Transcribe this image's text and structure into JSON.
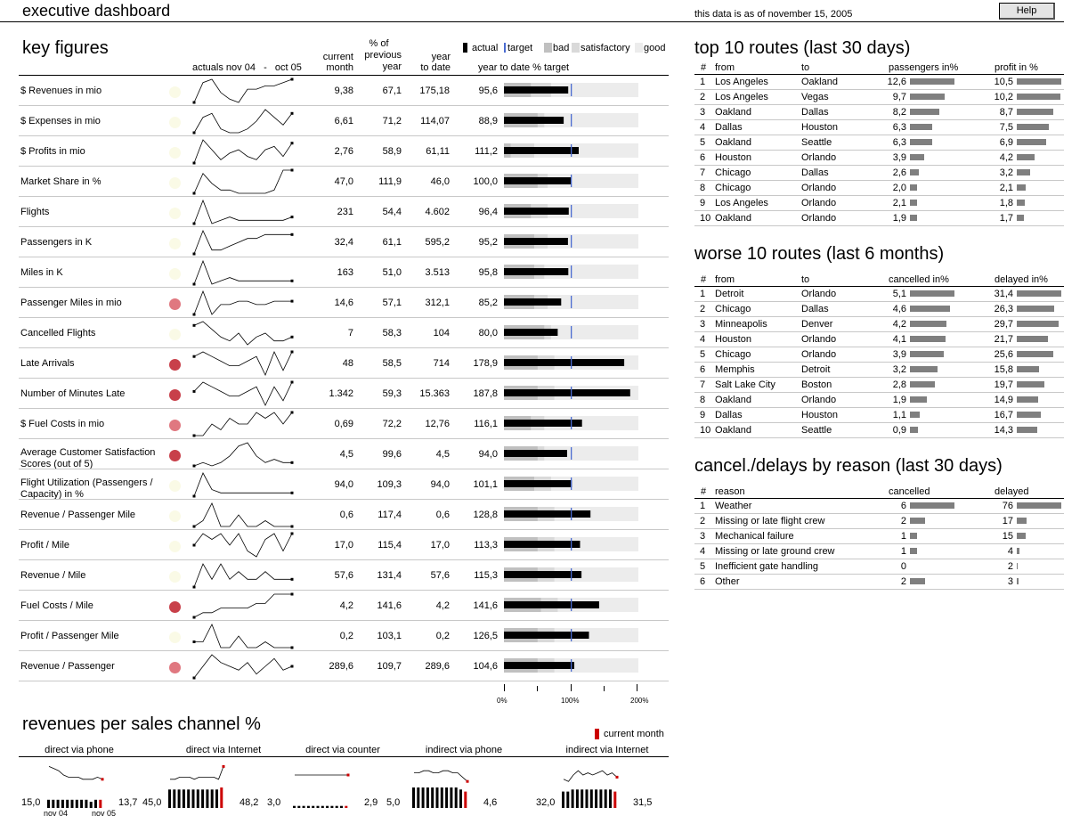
{
  "header": {
    "title": "executive dashboard",
    "as_of": "this data is as of november 15, 2005",
    "help_label": "Help"
  },
  "key_figures": {
    "title": "key figures",
    "col_actuals": "actuals nov 04   -   oct 05",
    "col_current": [
      "current",
      "month"
    ],
    "col_prev": [
      "% of",
      "previous",
      "year"
    ],
    "col_ytd": [
      "year",
      "to date"
    ],
    "col_ytd_target": "year to date % target",
    "legend": {
      "actual": "actual",
      "target": "target",
      "bad": "bad",
      "satisfactory": "satisfactory",
      "good": "good"
    },
    "axis_labels": [
      "0%",
      "100%",
      "200%"
    ],
    "rows": [
      {
        "label": "$ Revenues in mio",
        "current": "9,38",
        "prev": "67,1",
        "ytd": "175,18",
        "target": "95,6",
        "pct": 95.6,
        "bad": 40,
        "sat": 70,
        "status": "none",
        "spark": [
          2,
          8,
          9,
          5,
          3,
          2,
          6,
          6,
          7,
          7,
          8,
          9
        ]
      },
      {
        "label": "$ Expenses in mio",
        "current": "6,61",
        "prev": "71,2",
        "ytd": "114,07",
        "target": "88,9",
        "pct": 88.9,
        "bad": 50,
        "sat": 60,
        "status": "none",
        "spark": [
          2,
          6,
          7,
          3,
          2,
          2,
          3,
          5,
          8,
          6,
          4,
          7
        ]
      },
      {
        "label": "$ Profits in mio",
        "current": "2,76",
        "prev": "58,9",
        "ytd": "61,11",
        "target": "111,2",
        "pct": 111.2,
        "bad": 10,
        "sat": 45,
        "status": "none",
        "spark": [
          2,
          9,
          6,
          3,
          5,
          6,
          4,
          3,
          6,
          7,
          4,
          8
        ]
      },
      {
        "label": "Market Share in %",
        "current": "47,0",
        "prev": "111,9",
        "ytd": "46,0",
        "target": "100,0",
        "pct": 100,
        "bad": 50,
        "sat": 65,
        "status": "none",
        "spark": [
          2,
          8,
          5,
          3,
          3,
          2,
          2,
          2,
          2,
          3,
          9,
          9
        ]
      },
      {
        "label": "Flights",
        "current": "231",
        "prev": "54,4",
        "ytd": "4.602",
        "target": "96,4",
        "pct": 96.4,
        "bad": 40,
        "sat": 65,
        "status": "none",
        "spark": [
          2,
          9,
          2,
          3,
          4,
          3,
          3,
          3,
          3,
          3,
          3,
          4
        ]
      },
      {
        "label": "Passengers in K",
        "current": "32,4",
        "prev": "61,1",
        "ytd": "595,2",
        "target": "95,2",
        "pct": 95.2,
        "bad": 45,
        "sat": 65,
        "status": "none",
        "spark": [
          2,
          8,
          3,
          3,
          4,
          5,
          6,
          6,
          7,
          7,
          7,
          7
        ]
      },
      {
        "label": "Miles in K",
        "current": "163",
        "prev": "51,0",
        "ytd": "3.513",
        "target": "95,8",
        "pct": 95.8,
        "bad": 45,
        "sat": 60,
        "status": "none",
        "spark": [
          2,
          9,
          2,
          3,
          4,
          3,
          3,
          3,
          3,
          3,
          3,
          3
        ]
      },
      {
        "label": "Passenger Miles in mio",
        "current": "14,6",
        "prev": "57,1",
        "ytd": "312,1",
        "target": "85,2",
        "pct": 85.2,
        "bad": 45,
        "sat": 65,
        "status": "light",
        "spark": [
          2,
          9,
          2,
          5,
          5,
          6,
          6,
          5,
          5,
          6,
          6,
          6
        ]
      },
      {
        "label": "Cancelled Flights",
        "current": "7",
        "prev": "58,3",
        "ytd": "104",
        "target": "80,0",
        "pct": 80,
        "bad": 60,
        "sat": 70,
        "status": "none",
        "spark": [
          7,
          8,
          6,
          4,
          3,
          5,
          2,
          4,
          5,
          3,
          3,
          4
        ]
      },
      {
        "label": "Late Arrivals",
        "current": "48",
        "prev": "58,5",
        "ytd": "714",
        "target": "178,9",
        "pct": 178.9,
        "bad": 50,
        "sat": 75,
        "status": "dark",
        "spark": [
          6,
          7,
          6,
          5,
          4,
          4,
          5,
          6,
          2,
          7,
          3,
          7
        ]
      },
      {
        "label": "Number of Minutes Late",
        "current": "1.342",
        "prev": "59,3",
        "ytd": "15.363",
        "target": "187,8",
        "pct": 187.8,
        "bad": 50,
        "sat": 75,
        "status": "dark",
        "spark": [
          5,
          7,
          6,
          5,
          4,
          4,
          5,
          6,
          2,
          6,
          3,
          7
        ]
      },
      {
        "label": "$ Fuel Costs in mio",
        "current": "0,69",
        "prev": "72,2",
        "ytd": "12,76",
        "target": "116,1",
        "pct": 116.1,
        "bad": 40,
        "sat": 60,
        "status": "light",
        "spark": [
          3,
          3,
          5,
          4,
          6,
          5,
          5,
          7,
          6,
          7,
          5,
          7
        ]
      },
      {
        "label": "Average Customer Satisfaction Scores (out of 5)",
        "current": "4,5",
        "prev": "99,6",
        "ytd": "4,5",
        "target": "94,0",
        "pct": 94,
        "bad": 50,
        "sat": 60,
        "status": "dark",
        "spark": [
          2,
          3,
          2,
          3,
          5,
          8,
          9,
          5,
          3,
          4,
          3,
          3
        ]
      },
      {
        "label": "Flight Utilization (Passengers / Capacity) in %",
        "current": "94,0",
        "prev": "109,3",
        "ytd": "94,0",
        "target": "101,1",
        "pct": 101.1,
        "bad": 45,
        "sat": 70,
        "status": "none",
        "spark": [
          2,
          9,
          4,
          3,
          3,
          3,
          3,
          3,
          3,
          3,
          3,
          3
        ]
      },
      {
        "label": "Revenue / Passenger Mile",
        "current": "0,6",
        "prev": "117,4",
        "ytd": "0,6",
        "target": "128,8",
        "pct": 128.8,
        "bad": 50,
        "sat": 75,
        "status": "none",
        "spark": [
          4,
          5,
          8,
          4,
          4,
          6,
          4,
          4,
          5,
          4,
          4,
          4
        ]
      },
      {
        "label": "Profit / Mile",
        "current": "17,0",
        "prev": "115,4",
        "ytd": "17,0",
        "target": "113,3",
        "pct": 113.3,
        "bad": 50,
        "sat": 75,
        "status": "none",
        "spark": [
          4,
          6,
          5,
          6,
          4,
          6,
          3,
          2,
          5,
          6,
          3,
          6
        ]
      },
      {
        "label": "Revenue / Mile",
        "current": "57,6",
        "prev": "131,4",
        "ytd": "57,6",
        "target": "115,3",
        "pct": 115.3,
        "bad": 50,
        "sat": 75,
        "status": "none",
        "spark": [
          3,
          6,
          4,
          6,
          4,
          5,
          4,
          4,
          5,
          4,
          4,
          4
        ]
      },
      {
        "label": "Fuel Costs / Mile",
        "current": "4,2",
        "prev": "141,6",
        "ytd": "4,2",
        "target": "141,6",
        "pct": 141.6,
        "bad": 55,
        "sat": 80,
        "status": "dark",
        "spark": [
          3,
          4,
          4,
          5,
          5,
          5,
          5,
          6,
          6,
          8,
          8,
          8
        ]
      },
      {
        "label": "Profit / Passenger Mile",
        "current": "0,2",
        "prev": "103,1",
        "ytd": "0,2",
        "target": "126,5",
        "pct": 126.5,
        "bad": 50,
        "sat": 75,
        "status": "none",
        "spark": [
          5,
          5,
          8,
          4,
          4,
          6,
          4,
          4,
          5,
          4,
          4,
          4
        ]
      },
      {
        "label": "Revenue / Passenger",
        "current": "289,6",
        "prev": "109,7",
        "ytd": "289,6",
        "target": "104,6",
        "pct": 104.6,
        "bad": 50,
        "sat": 75,
        "status": "light",
        "spark": [
          2,
          5,
          8,
          6,
          5,
          4,
          6,
          3,
          5,
          7,
          4,
          5
        ]
      }
    ]
  },
  "channels": {
    "title": "revenues per sales channel %",
    "legend": "current month",
    "start_label": "nov 04",
    "end_label": "nov 05",
    "items": [
      {
        "name": "direct via phone",
        "start": "15,0",
        "end": "13,7",
        "line": [
          9,
          8,
          7,
          5,
          4,
          4,
          4,
          3,
          3,
          3,
          4,
          3
        ],
        "bars": [
          4,
          4,
          4,
          4,
          4,
          4,
          4,
          4,
          4,
          3,
          4,
          4
        ]
      },
      {
        "name": "direct via Internet",
        "start": "45,0",
        "end": "48,2",
        "line": [
          3,
          3,
          4,
          4,
          4,
          3,
          4,
          4,
          4,
          4,
          3,
          9
        ],
        "bars": [
          9,
          9,
          9,
          9,
          9,
          9,
          9,
          9,
          9,
          9,
          9,
          10
        ]
      },
      {
        "name": "direct via counter",
        "start": "3,0",
        "end": "2,9",
        "line": [
          5,
          5,
          5,
          5,
          5,
          5,
          5,
          5,
          5,
          5,
          5,
          5
        ],
        "bars": [
          1,
          1,
          1,
          1,
          1,
          1,
          1,
          1,
          1,
          1,
          1,
          1
        ]
      },
      {
        "name": "indirect via phone",
        "start": "5,0",
        "end": "4,6",
        "line": [
          6,
          6,
          7,
          7,
          6,
          6,
          7,
          7,
          6,
          6,
          4,
          2
        ],
        "bars": [
          10,
          10,
          10,
          10,
          10,
          10,
          10,
          10,
          10,
          10,
          9,
          8
        ]
      },
      {
        "name": "indirect via Internet",
        "start": "32,0",
        "end": "31,5",
        "line": [
          3,
          2,
          5,
          7,
          5,
          6,
          5,
          6,
          7,
          5,
          6,
          4
        ],
        "bars": [
          8,
          8,
          9,
          9,
          9,
          9,
          9,
          9,
          9,
          9,
          9,
          8
        ]
      }
    ]
  },
  "top_routes": {
    "title": "top 10 routes (last 30 days)",
    "headers": [
      "#",
      "from",
      "to",
      "passengers in%",
      "profit in %"
    ],
    "rows": [
      {
        "n": "1",
        "from": "Los Angeles",
        "to": "Oakland",
        "a": "12,6",
        "av": 12.6,
        "b": "10,5",
        "bv": 10.5
      },
      {
        "n": "2",
        "from": "Los Angeles",
        "to": "Vegas",
        "a": "9,7",
        "av": 9.7,
        "b": "10,2",
        "bv": 10.2
      },
      {
        "n": "3",
        "from": "Oakland",
        "to": "Dallas",
        "a": "8,2",
        "av": 8.2,
        "b": "8,7",
        "bv": 8.7
      },
      {
        "n": "4",
        "from": "Dallas",
        "to": "Houston",
        "a": "6,3",
        "av": 6.3,
        "b": "7,5",
        "bv": 7.5
      },
      {
        "n": "5",
        "from": "Oakland",
        "to": "Seattle",
        "a": "6,3",
        "av": 6.3,
        "b": "6,9",
        "bv": 6.9
      },
      {
        "n": "6",
        "from": "Houston",
        "to": "Orlando",
        "a": "3,9",
        "av": 3.9,
        "b": "4,2",
        "bv": 4.2
      },
      {
        "n": "7",
        "from": "Chicago",
        "to": "Dallas",
        "a": "2,6",
        "av": 2.6,
        "b": "3,2",
        "bv": 3.2
      },
      {
        "n": "8",
        "from": "Chicago",
        "to": "Orlando",
        "a": "2,0",
        "av": 2.0,
        "b": "2,1",
        "bv": 2.1
      },
      {
        "n": "9",
        "from": "Los Angeles",
        "to": "Orlando",
        "a": "2,1",
        "av": 2.1,
        "b": "1,8",
        "bv": 1.8
      },
      {
        "n": "10",
        "from": "Oakland",
        "to": "Orlando",
        "a": "1,9",
        "av": 1.9,
        "b": "1,7",
        "bv": 1.7
      }
    ]
  },
  "worse_routes": {
    "title": "worse 10 routes (last 6 months)",
    "headers": [
      "#",
      "from",
      "to",
      "cancelled in%",
      "delayed in%"
    ],
    "rows": [
      {
        "n": "1",
        "from": "Detroit",
        "to": "Orlando",
        "a": "5,1",
        "av": 5.1,
        "b": "31,4",
        "bv": 31.4
      },
      {
        "n": "2",
        "from": "Chicago",
        "to": "Dallas",
        "a": "4,6",
        "av": 4.6,
        "b": "26,3",
        "bv": 26.3
      },
      {
        "n": "3",
        "from": "Minneapolis",
        "to": "Denver",
        "a": "4,2",
        "av": 4.2,
        "b": "29,7",
        "bv": 29.7
      },
      {
        "n": "4",
        "from": "Houston",
        "to": "Orlando",
        "a": "4,1",
        "av": 4.1,
        "b": "21,7",
        "bv": 21.7
      },
      {
        "n": "5",
        "from": "Chicago",
        "to": "Orlando",
        "a": "3,9",
        "av": 3.9,
        "b": "25,6",
        "bv": 25.6
      },
      {
        "n": "6",
        "from": "Memphis",
        "to": "Detroit",
        "a": "3,2",
        "av": 3.2,
        "b": "15,8",
        "bv": 15.8
      },
      {
        "n": "7",
        "from": "Salt Lake City",
        "to": "Boston",
        "a": "2,8",
        "av": 2.8,
        "b": "19,7",
        "bv": 19.7
      },
      {
        "n": "8",
        "from": "Oakland",
        "to": "Orlando",
        "a": "1,9",
        "av": 1.9,
        "b": "14,9",
        "bv": 14.9
      },
      {
        "n": "9",
        "from": "Dallas",
        "to": "Houston",
        "a": "1,1",
        "av": 1.1,
        "b": "16,7",
        "bv": 16.7
      },
      {
        "n": "10",
        "from": "Oakland",
        "to": "Seattle",
        "a": "0,9",
        "av": 0.9,
        "b": "14,3",
        "bv": 14.3
      }
    ]
  },
  "reasons": {
    "title": "cancel./delays by reason (last 30 days)",
    "headers": [
      "#",
      "reason",
      "cancelled",
      "delayed"
    ],
    "rows": [
      {
        "n": "1",
        "reason": "Weather",
        "a": "6",
        "av": 6,
        "b": "76",
        "bv": 76
      },
      {
        "n": "2",
        "reason": "Missing or late flight crew",
        "a": "2",
        "av": 2,
        "b": "17",
        "bv": 17
      },
      {
        "n": "3",
        "reason": "Mechanical failure",
        "a": "1",
        "av": 1,
        "b": "15",
        "bv": 15
      },
      {
        "n": "4",
        "reason": "Missing or late ground crew",
        "a": "1",
        "av": 1,
        "b": "4",
        "bv": 4
      },
      {
        "n": "5",
        "reason": "Inefficient gate handling",
        "a": "0",
        "av": 0,
        "b": "2",
        "bv": 2
      },
      {
        "n": "6",
        "reason": "Other",
        "a": "2",
        "av": 2,
        "b": "3",
        "bv": 3
      }
    ]
  },
  "colors": {
    "bad": "#c0c0c0",
    "satisfactory": "#d9d9d9",
    "good": "#ececec",
    "target": "#4a6bd0",
    "status_dark": "#c8404a",
    "status_light": "#e07880",
    "status_none": "#fafae6",
    "accent_red": "#cc0000"
  }
}
